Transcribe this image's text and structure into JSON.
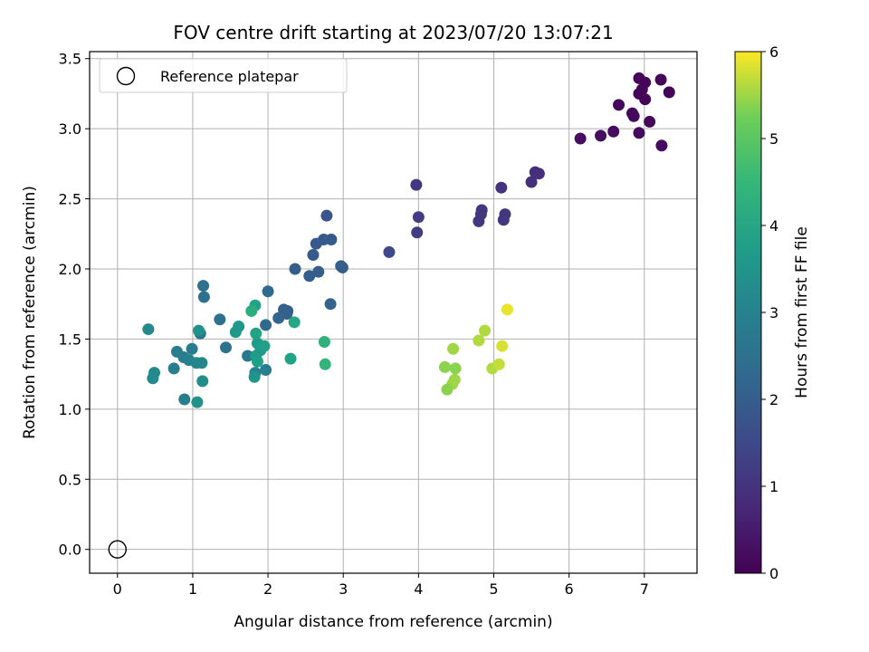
{
  "chart_data": {
    "type": "scatter",
    "title": "FOV centre drift starting at 2023/07/20 13:07:21",
    "xlabel": "Angular distance from reference (arcmin)",
    "ylabel": "Rotation from reference (arcmin)",
    "xlim": [
      -0.37,
      7.7
    ],
    "ylim": [
      -0.17,
      3.55
    ],
    "xticks": [
      0,
      1,
      2,
      3,
      4,
      5,
      6,
      7
    ],
    "yticks": [
      0.0,
      0.5,
      1.0,
      1.5,
      2.0,
      2.5,
      3.0,
      3.5
    ],
    "xtick_labels": [
      "0",
      "1",
      "2",
      "3",
      "4",
      "5",
      "6",
      "7"
    ],
    "ytick_labels": [
      "0.0",
      "0.5",
      "1.0",
      "1.5",
      "2.0",
      "2.5",
      "3.0",
      "3.5"
    ],
    "grid": true,
    "legend": {
      "placement": "top-left",
      "entries": [
        "Reference platepar"
      ]
    },
    "reference_point": {
      "x": 0,
      "y": 0,
      "label": "Reference platepar"
    },
    "colorbar": {
      "label": "Hours from first FF file",
      "range": [
        0,
        6
      ],
      "ticks": [
        0,
        1,
        2,
        3,
        4,
        5,
        6
      ],
      "colormap": "viridis"
    },
    "points": [
      {
        "x": 6.93,
        "y": 3.36,
        "h": 0.1
      },
      {
        "x": 7.01,
        "y": 3.33,
        "h": 0.1
      },
      {
        "x": 7.22,
        "y": 3.35,
        "h": 0.1
      },
      {
        "x": 7.33,
        "y": 3.26,
        "h": 0.1
      },
      {
        "x": 6.93,
        "y": 3.25,
        "h": 0.1
      },
      {
        "x": 7.01,
        "y": 3.21,
        "h": 0.1
      },
      {
        "x": 6.97,
        "y": 3.28,
        "h": 0.1
      },
      {
        "x": 6.66,
        "y": 3.17,
        "h": 0.15
      },
      {
        "x": 6.84,
        "y": 3.11,
        "h": 0.15
      },
      {
        "x": 6.86,
        "y": 3.09,
        "h": 0.15
      },
      {
        "x": 7.07,
        "y": 3.05,
        "h": 0.15
      },
      {
        "x": 6.59,
        "y": 2.98,
        "h": 0.2
      },
      {
        "x": 6.93,
        "y": 2.97,
        "h": 0.2
      },
      {
        "x": 6.42,
        "y": 2.95,
        "h": 0.25
      },
      {
        "x": 6.15,
        "y": 2.93,
        "h": 0.25
      },
      {
        "x": 7.23,
        "y": 2.88,
        "h": 0.2
      },
      {
        "x": 5.55,
        "y": 2.69,
        "h": 0.9
      },
      {
        "x": 5.6,
        "y": 2.68,
        "h": 0.9
      },
      {
        "x": 5.5,
        "y": 2.62,
        "h": 0.9
      },
      {
        "x": 5.1,
        "y": 2.58,
        "h": 1.0
      },
      {
        "x": 3.97,
        "y": 2.6,
        "h": 1.1
      },
      {
        "x": 4.84,
        "y": 2.42,
        "h": 1.1
      },
      {
        "x": 4.83,
        "y": 2.39,
        "h": 1.1
      },
      {
        "x": 4.8,
        "y": 2.34,
        "h": 1.1
      },
      {
        "x": 5.15,
        "y": 2.39,
        "h": 1.1
      },
      {
        "x": 5.13,
        "y": 2.35,
        "h": 1.1
      },
      {
        "x": 4.0,
        "y": 2.37,
        "h": 1.2
      },
      {
        "x": 3.98,
        "y": 2.26,
        "h": 1.2
      },
      {
        "x": 3.61,
        "y": 2.12,
        "h": 1.5
      },
      {
        "x": 2.78,
        "y": 2.38,
        "h": 1.8
      },
      {
        "x": 2.74,
        "y": 2.21,
        "h": 1.9
      },
      {
        "x": 2.84,
        "y": 2.21,
        "h": 1.9
      },
      {
        "x": 2.64,
        "y": 2.18,
        "h": 1.9
      },
      {
        "x": 2.6,
        "y": 2.1,
        "h": 1.9
      },
      {
        "x": 2.97,
        "y": 2.02,
        "h": 2.0
      },
      {
        "x": 2.99,
        "y": 2.01,
        "h": 2.0
      },
      {
        "x": 2.36,
        "y": 2.0,
        "h": 2.0
      },
      {
        "x": 2.55,
        "y": 1.95,
        "h": 2.0
      },
      {
        "x": 2.67,
        "y": 1.98,
        "h": 2.0
      },
      {
        "x": 2.83,
        "y": 1.75,
        "h": 2.1
      },
      {
        "x": 2.21,
        "y": 1.71,
        "h": 2.1
      },
      {
        "x": 2.26,
        "y": 1.7,
        "h": 2.1
      },
      {
        "x": 2.25,
        "y": 1.68,
        "h": 2.1
      },
      {
        "x": 2.14,
        "y": 1.65,
        "h": 2.2
      },
      {
        "x": 2.0,
        "y": 1.84,
        "h": 2.3
      },
      {
        "x": 1.97,
        "y": 1.6,
        "h": 2.3
      },
      {
        "x": 1.14,
        "y": 1.88,
        "h": 2.5
      },
      {
        "x": 1.15,
        "y": 1.8,
        "h": 2.5
      },
      {
        "x": 1.36,
        "y": 1.64,
        "h": 2.5
      },
      {
        "x": 1.1,
        "y": 1.54,
        "h": 2.6
      },
      {
        "x": 1.44,
        "y": 1.44,
        "h": 2.6
      },
      {
        "x": 1.73,
        "y": 1.38,
        "h": 2.7
      },
      {
        "x": 0.79,
        "y": 1.41,
        "h": 2.8
      },
      {
        "x": 0.88,
        "y": 1.37,
        "h": 2.8
      },
      {
        "x": 0.99,
        "y": 1.43,
        "h": 2.8
      },
      {
        "x": 0.75,
        "y": 1.29,
        "h": 2.9
      },
      {
        "x": 1.97,
        "y": 1.28,
        "h": 2.9
      },
      {
        "x": 0.89,
        "y": 1.07,
        "h": 2.9
      },
      {
        "x": 1.83,
        "y": 1.26,
        "h": 3.0
      },
      {
        "x": 0.95,
        "y": 1.35,
        "h": 3.0
      },
      {
        "x": 1.05,
        "y": 1.33,
        "h": 3.1
      },
      {
        "x": 1.12,
        "y": 1.33,
        "h": 3.1
      },
      {
        "x": 0.41,
        "y": 1.57,
        "h": 3.2
      },
      {
        "x": 0.49,
        "y": 1.26,
        "h": 3.2
      },
      {
        "x": 0.47,
        "y": 1.22,
        "h": 3.2
      },
      {
        "x": 1.13,
        "y": 1.2,
        "h": 3.3
      },
      {
        "x": 1.06,
        "y": 1.05,
        "h": 3.4
      },
      {
        "x": 1.08,
        "y": 1.56,
        "h": 3.4
      },
      {
        "x": 1.82,
        "y": 1.23,
        "h": 3.5
      },
      {
        "x": 1.61,
        "y": 1.59,
        "h": 3.6
      },
      {
        "x": 1.57,
        "y": 1.55,
        "h": 3.6
      },
      {
        "x": 1.86,
        "y": 1.47,
        "h": 3.7
      },
      {
        "x": 1.9,
        "y": 1.42,
        "h": 3.7
      },
      {
        "x": 1.84,
        "y": 1.38,
        "h": 3.7
      },
      {
        "x": 1.86,
        "y": 1.34,
        "h": 3.8
      },
      {
        "x": 1.95,
        "y": 1.45,
        "h": 3.8
      },
      {
        "x": 1.84,
        "y": 1.54,
        "h": 3.9
      },
      {
        "x": 1.83,
        "y": 1.74,
        "h": 3.9
      },
      {
        "x": 2.3,
        "y": 1.36,
        "h": 3.9
      },
      {
        "x": 2.35,
        "y": 1.62,
        "h": 4.0
      },
      {
        "x": 1.78,
        "y": 1.7,
        "h": 4.2
      },
      {
        "x": 2.75,
        "y": 1.48,
        "h": 4.3
      },
      {
        "x": 2.76,
        "y": 1.32,
        "h": 4.4
      },
      {
        "x": 5.18,
        "y": 1.71,
        "h": 5.9
      },
      {
        "x": 4.88,
        "y": 1.56,
        "h": 5.6
      },
      {
        "x": 4.8,
        "y": 1.49,
        "h": 5.6
      },
      {
        "x": 5.11,
        "y": 1.45,
        "h": 5.8
      },
      {
        "x": 4.46,
        "y": 1.43,
        "h": 5.5
      },
      {
        "x": 4.35,
        "y": 1.3,
        "h": 5.4
      },
      {
        "x": 4.49,
        "y": 1.29,
        "h": 5.4
      },
      {
        "x": 4.98,
        "y": 1.29,
        "h": 5.6
      },
      {
        "x": 5.07,
        "y": 1.32,
        "h": 5.7
      },
      {
        "x": 4.48,
        "y": 1.21,
        "h": 5.5
      },
      {
        "x": 4.45,
        "y": 1.18,
        "h": 5.5
      },
      {
        "x": 4.38,
        "y": 1.14,
        "h": 5.4
      }
    ]
  }
}
